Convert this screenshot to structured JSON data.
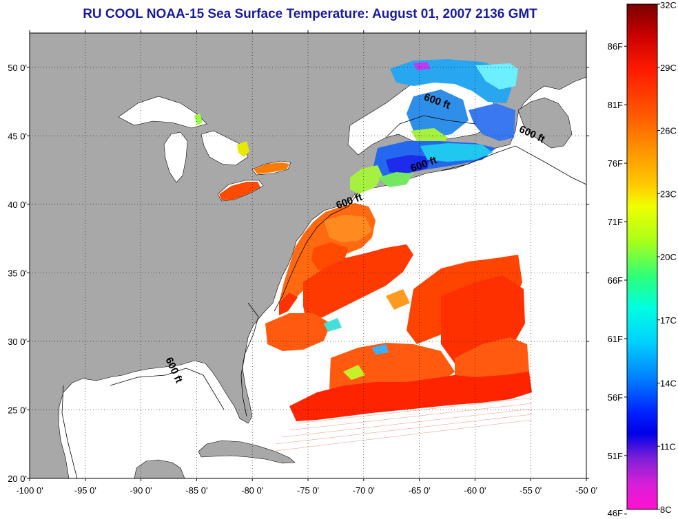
{
  "title": "RU COOL  NOAA-15  Sea Surface Temperature:  August 01, 2007 2136 GMT",
  "map": {
    "lon_range": [
      -100,
      -50
    ],
    "lat_range": [
      20,
      52.5
    ],
    "lon_ticks": [
      {
        "value": -100,
        "label": "-100 0'"
      },
      {
        "value": -95,
        "label": "-95 0'"
      },
      {
        "value": -90,
        "label": "-90 0'"
      },
      {
        "value": -85,
        "label": "-85 0'"
      },
      {
        "value": -80,
        "label": "-80 0'"
      },
      {
        "value": -75,
        "label": "-75 0'"
      },
      {
        "value": -70,
        "label": "-70 0'"
      },
      {
        "value": -65,
        "label": "-65 0'"
      },
      {
        "value": -60,
        "label": "-60 0'"
      },
      {
        "value": -55,
        "label": "-55 0'"
      },
      {
        "value": -50,
        "label": "-50 0'"
      }
    ],
    "lat_ticks": [
      {
        "value": 20,
        "label": "20 0'"
      },
      {
        "value": 25,
        "label": "25 0'"
      },
      {
        "value": 30,
        "label": "30 0'"
      },
      {
        "value": 35,
        "label": "35 0'"
      },
      {
        "value": 40,
        "label": "40 0'"
      },
      {
        "value": 45,
        "label": "45 0'"
      },
      {
        "value": 50,
        "label": "50 0'"
      }
    ],
    "contour_labels": [
      {
        "text": "600 ft",
        "lon": -63.5,
        "lat": 47.3,
        "rotate": 20
      },
      {
        "text": "600 ft",
        "lon": -55.0,
        "lat": 44.9,
        "rotate": 25
      },
      {
        "text": "600 ft",
        "lon": -64.5,
        "lat": 42.7,
        "rotate": -20
      },
      {
        "text": "600 ft",
        "lon": -71.2,
        "lat": 40.0,
        "rotate": -20
      },
      {
        "text": "600 ft",
        "lon": -87.3,
        "lat": 27.8,
        "rotate": 65
      }
    ],
    "colors": {
      "land": "#a8a8a8",
      "ocean": "#ffffff",
      "grid": "#000000"
    }
  },
  "colorbar": {
    "celsius_labels": [
      "32C",
      "29C",
      "26C",
      "23C",
      "20C",
      "17C",
      "14C",
      "11C",
      "8C"
    ],
    "fahrenheit_labels": [
      "86F",
      "81F",
      "76F",
      "71F",
      "66F",
      "61F",
      "56F",
      "51F",
      "46F"
    ],
    "min_c": 8,
    "max_c": 32
  }
}
